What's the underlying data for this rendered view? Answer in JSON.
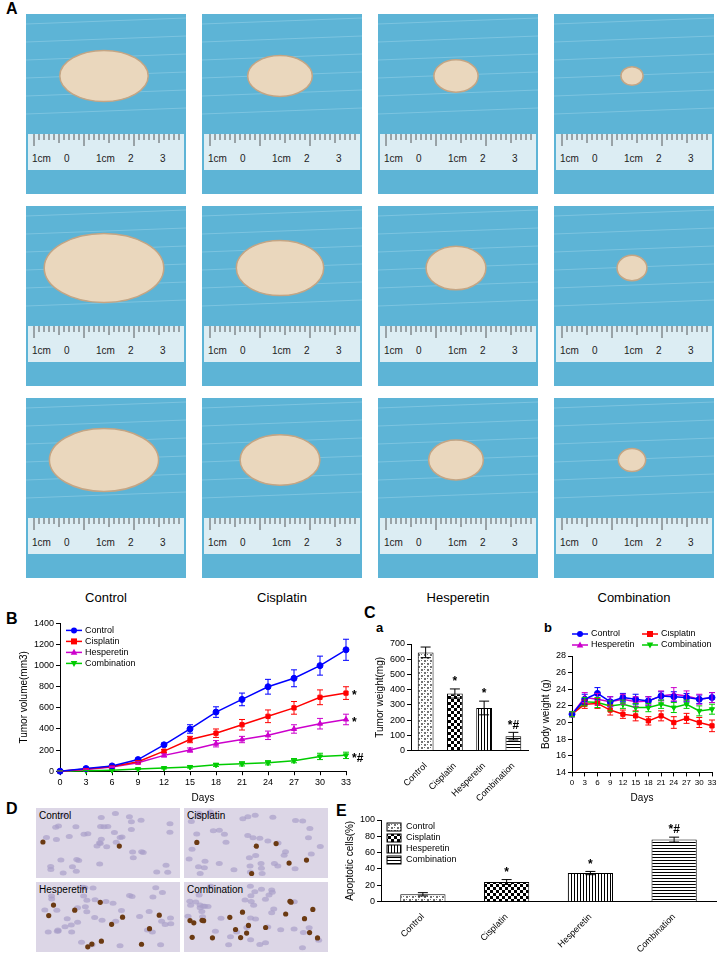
{
  "figure": {
    "panel_labels": [
      "A",
      "B",
      "C",
      "D",
      "E"
    ],
    "photos": [
      {
        "groups": [
          "Control",
          "Cisplatin",
          "Hesperetin",
          "Combination"
        ],
        "ruler_labels": [
          "1cm",
          "0",
          "1cm",
          "2",
          "3"
        ]
      },
      {
        "groups": [
          "Control",
          "Cisplatin",
          "Hesperetin",
          "Combination"
        ]
      }
    ]
  },
  "chart_data": [
    {
      "type": "line",
      "x": [
        0,
        3,
        6,
        9,
        12,
        15,
        18,
        21,
        24,
        27,
        30,
        33
      ],
      "xlim": [
        0,
        33
      ],
      "xticks": [
        0,
        3,
        6,
        9,
        12,
        15,
        18,
        21,
        24,
        27,
        30,
        33
      ],
      "ylim": [
        0,
        1400
      ],
      "yticks": [
        0,
        200,
        400,
        600,
        800,
        1000,
        1200,
        1400
      ],
      "xlabel": "Days",
      "ylabel": "Tumor volume(mm3)",
      "grid": false,
      "legend": "upper left",
      "series": [
        {
          "name": "Control",
          "color": "#0000ff",
          "marker": "circle",
          "values": [
            0,
            25,
            50,
            110,
            250,
            400,
            560,
            680,
            800,
            880,
            1000,
            1150
          ],
          "errors": [
            0,
            5,
            8,
            10,
            15,
            40,
            50,
            60,
            70,
            80,
            90,
            100
          ]
        },
        {
          "name": "Cisplatin",
          "color": "#ff0000",
          "marker": "square",
          "values": [
            0,
            20,
            45,
            90,
            190,
            300,
            360,
            440,
            520,
            600,
            700,
            740
          ],
          "errors": [
            0,
            5,
            5,
            10,
            15,
            30,
            40,
            50,
            60,
            60,
            70,
            60
          ]
        },
        {
          "name": "Hesperetin",
          "color": "#cc00cc",
          "marker": "triangle",
          "values": [
            0,
            15,
            40,
            80,
            150,
            200,
            260,
            300,
            340,
            400,
            450,
            490
          ],
          "errors": [
            0,
            5,
            5,
            10,
            15,
            20,
            30,
            30,
            40,
            40,
            50,
            50
          ]
        },
        {
          "name": "Combination",
          "color": "#00cc00",
          "marker": "triangle-down",
          "values": [
            0,
            5,
            10,
            20,
            30,
            40,
            60,
            70,
            80,
            100,
            140,
            150
          ],
          "errors": [
            0,
            2,
            3,
            5,
            8,
            10,
            15,
            20,
            20,
            20,
            30,
            30
          ]
        }
      ],
      "annotations": [
        {
          "series": "Cisplatin",
          "text": "*"
        },
        {
          "series": "Hesperetin",
          "text": "*"
        },
        {
          "series": "Combination",
          "text": "*#"
        }
      ]
    },
    {
      "type": "bar",
      "title": "a",
      "categories": [
        "Control",
        "Cisplatin",
        "Hesperetin",
        "Combination"
      ],
      "values": [
        645,
        375,
        280,
        95
      ],
      "errors": [
        35,
        30,
        45,
        25
      ],
      "color": "#000000",
      "ylim": [
        0,
        700
      ],
      "yticks": [
        0,
        100,
        200,
        300,
        400,
        500,
        600,
        700
      ],
      "ylabel": "Tumor weight(mg)",
      "grid": false,
      "annotations": [
        null,
        "*",
        "*",
        "*#"
      ]
    },
    {
      "type": "line",
      "title": "b",
      "x": [
        0,
        3,
        6,
        9,
        12,
        15,
        18,
        21,
        24,
        27,
        30,
        33
      ],
      "xlim": [
        0,
        33
      ],
      "xticks": [
        0,
        3,
        6,
        9,
        12,
        15,
        18,
        21,
        24,
        27,
        30,
        33
      ],
      "ylim": [
        14,
        28
      ],
      "yticks": [
        14,
        16,
        18,
        20,
        22,
        24,
        26,
        28
      ],
      "xlabel": "Days",
      "ylabel": "Body weight (g)",
      "grid": false,
      "legend": "top",
      "series": [
        {
          "name": "Control",
          "color": "#0000ff",
          "marker": "circle",
          "values": [
            21,
            22.8,
            23.5,
            22.5,
            23,
            22.8,
            22.6,
            23.2,
            23.1,
            23,
            22.8,
            23
          ],
          "errors": [
            0.3,
            0.6,
            0.7,
            0.6,
            0.5,
            0.6,
            0.5,
            0.5,
            0.6,
            0.5,
            0.5,
            0.6
          ]
        },
        {
          "name": "Cisplatin",
          "color": "#ff0000",
          "marker": "square",
          "values": [
            21,
            22.2,
            22.3,
            21.5,
            21,
            20.8,
            20.2,
            20.8,
            20,
            20.5,
            20,
            19.6
          ],
          "errors": [
            0.3,
            0.5,
            0.6,
            0.6,
            0.5,
            0.6,
            0.5,
            0.6,
            0.7,
            0.6,
            0.6,
            0.7
          ]
        },
        {
          "name": "Hesperetin",
          "color": "#cc00cc",
          "marker": "triangle",
          "values": [
            21,
            23,
            22.8,
            22.5,
            22.8,
            22.5,
            22.6,
            23.2,
            23.4,
            23.2,
            22.8,
            23
          ],
          "errors": [
            0.3,
            0.6,
            0.7,
            0.6,
            0.6,
            0.6,
            0.5,
            0.6,
            0.8,
            0.6,
            0.6,
            0.6
          ]
        },
        {
          "name": "Combination",
          "color": "#00cc00",
          "marker": "triangle-down",
          "values": [
            21,
            22.5,
            22.4,
            22,
            22.2,
            21.8,
            21.8,
            22.2,
            21.8,
            22.2,
            21.4,
            21.6
          ],
          "errors": [
            0.3,
            0.5,
            0.6,
            0.6,
            0.5,
            0.5,
            0.5,
            0.5,
            0.6,
            0.5,
            0.6,
            0.6
          ]
        }
      ]
    },
    {
      "type": "bar",
      "categories": [
        "Control",
        "Cisplatin",
        "Hesperetin",
        "Combination"
      ],
      "values": [
        9,
        24,
        35,
        76
      ],
      "errors": [
        2,
        3,
        2,
        3
      ],
      "color": "#000000",
      "ylim": [
        0,
        100
      ],
      "yticks": [
        0,
        20,
        40,
        60,
        80,
        100
      ],
      "ylabel": "Apoptotic cells(%)",
      "grid": false,
      "legend": "upper left",
      "annotations": [
        null,
        "*",
        "*",
        "*#"
      ]
    }
  ]
}
